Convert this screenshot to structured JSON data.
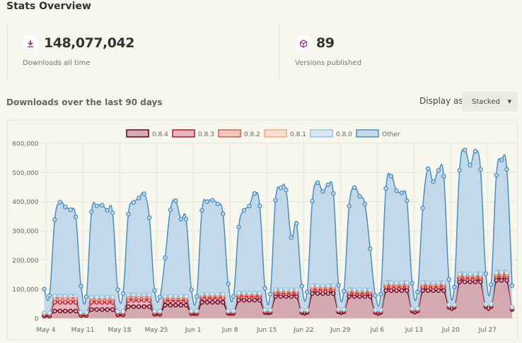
{
  "header": {
    "title": "Stats Overview"
  },
  "stats": [
    {
      "icon": "download-icon",
      "value": "148,077,042",
      "label": "Downloads all time"
    },
    {
      "icon": "box-icon",
      "value": "89",
      "label": "Versions published"
    }
  ],
  "chart_section": {
    "heading": "Downloads over the last 90 days",
    "display_label": "Display as",
    "display_value": "Stacked"
  },
  "chart_data": {
    "type": "area",
    "stacked": true,
    "values_in_thousands": true,
    "ylim": [
      0,
      600
    ],
    "y_ticks": [
      0,
      100,
      200,
      300,
      400,
      500,
      600
    ],
    "y_tick_labels": [
      "0",
      "100,000",
      "200,000",
      "300,000",
      "400,000",
      "500,000",
      "600,000"
    ],
    "x_tick_labels": [
      "May 4",
      "May 11",
      "May 18",
      "May 25",
      "Jun 1",
      "Jun 8",
      "Jun 15",
      "Jun 22",
      "Jun 29",
      "Jul 6",
      "Jul 13",
      "Jul 20",
      "Jul 27"
    ],
    "x_tick_index_step": 7,
    "grid": true,
    "legend_position": "top",
    "series": [
      {
        "name": "0.8.4",
        "stroke": "#67001f",
        "fill": "#d5a9b2",
        "values": [
          8,
          8,
          25,
          25,
          25,
          25,
          25,
          10,
          10,
          30,
          30,
          30,
          30,
          30,
          12,
          12,
          40,
          40,
          40,
          40,
          40,
          14,
          14,
          45,
          45,
          45,
          45,
          45,
          16,
          16,
          55,
          55,
          55,
          55,
          55,
          17,
          17,
          62,
          62,
          62,
          62,
          62,
          20,
          20,
          75,
          75,
          75,
          75,
          75,
          20,
          20,
          85,
          85,
          85,
          85,
          85,
          22,
          22,
          75,
          75,
          75,
          75,
          75,
          20,
          20,
          95,
          95,
          95,
          95,
          95,
          25,
          25,
          95,
          95,
          95,
          95,
          95,
          38,
          38,
          125,
          125,
          125,
          125,
          125,
          40,
          40,
          130,
          130,
          130,
          30
        ]
      },
      {
        "name": "0.8.3",
        "stroke": "#b2182b",
        "fill": "#e8b7bd",
        "values": [
          5,
          5,
          30,
          30,
          30,
          30,
          30,
          5,
          5,
          25,
          25,
          25,
          25,
          25,
          6,
          6,
          22,
          22,
          22,
          22,
          22,
          5,
          5,
          15,
          15,
          15,
          15,
          15,
          4,
          4,
          15,
          15,
          15,
          15,
          15,
          4,
          4,
          12,
          12,
          12,
          12,
          12,
          4,
          4,
          10,
          10,
          10,
          10,
          10,
          4,
          4,
          12,
          12,
          12,
          12,
          12,
          4,
          4,
          10,
          10,
          10,
          10,
          10,
          4,
          4,
          12,
          12,
          12,
          12,
          12,
          4,
          4,
          12,
          12,
          12,
          12,
          12,
          4,
          4,
          12,
          12,
          12,
          12,
          12,
          4,
          4,
          12,
          12,
          12,
          4
        ]
      },
      {
        "name": "0.8.2",
        "stroke": "#d6604d",
        "fill": "#f2c5bb",
        "values": [
          3,
          3,
          12,
          12,
          12,
          12,
          12,
          3,
          3,
          10,
          10,
          10,
          10,
          10,
          3,
          3,
          10,
          10,
          10,
          10,
          10,
          3,
          3,
          8,
          8,
          8,
          8,
          8,
          3,
          3,
          6,
          6,
          6,
          6,
          6,
          2,
          2,
          6,
          6,
          6,
          6,
          6,
          2,
          2,
          6,
          6,
          6,
          6,
          6,
          2,
          2,
          7,
          7,
          7,
          7,
          7,
          2,
          2,
          6,
          6,
          6,
          6,
          6,
          2,
          2,
          7,
          7,
          7,
          7,
          7,
          2,
          2,
          7,
          7,
          7,
          7,
          7,
          2,
          2,
          7,
          7,
          7,
          7,
          7,
          2,
          2,
          7,
          7,
          7,
          2
        ]
      },
      {
        "name": "0.8.1",
        "stroke": "#f4a582",
        "fill": "#fbe0d2",
        "values": [
          2,
          2,
          8,
          8,
          8,
          8,
          8,
          2,
          2,
          6,
          6,
          6,
          6,
          6,
          2,
          2,
          7,
          7,
          7,
          7,
          7,
          2,
          2,
          6,
          6,
          6,
          6,
          6,
          2,
          2,
          5,
          5,
          5,
          5,
          5,
          2,
          2,
          5,
          5,
          5,
          5,
          5,
          2,
          2,
          5,
          5,
          5,
          5,
          5,
          2,
          2,
          6,
          6,
          6,
          6,
          6,
          2,
          2,
          5,
          5,
          5,
          5,
          5,
          2,
          2,
          6,
          6,
          6,
          6,
          6,
          2,
          2,
          6,
          6,
          6,
          6,
          6,
          2,
          2,
          6,
          6,
          6,
          6,
          6,
          2,
          2,
          6,
          6,
          6,
          2
        ]
      },
      {
        "name": "0.8.0",
        "stroke": "#92c5de",
        "fill": "#dbe9f3",
        "values": [
          1,
          1,
          2,
          2,
          2,
          2,
          2,
          1,
          1,
          2,
          2,
          2,
          2,
          2,
          1,
          1,
          2,
          2,
          2,
          2,
          2,
          1,
          1,
          2,
          2,
          2,
          2,
          2,
          1,
          1,
          2,
          2,
          2,
          2,
          2,
          1,
          1,
          2,
          2,
          2,
          2,
          2,
          1,
          1,
          2,
          2,
          2,
          2,
          2,
          1,
          1,
          2,
          2,
          2,
          2,
          2,
          1,
          1,
          2,
          2,
          2,
          2,
          2,
          1,
          1,
          2,
          2,
          2,
          2,
          2,
          1,
          1,
          2,
          2,
          2,
          2,
          2,
          1,
          1,
          2,
          2,
          2,
          2,
          2,
          1,
          1,
          2,
          2,
          2,
          1
        ]
      },
      {
        "name": "Other",
        "stroke": "#4a8fc1",
        "fill": "#c3d9ea",
        "values": [
          81,
          59,
          261,
          321,
          305,
          295,
          271,
          89,
          52,
          292,
          312,
          315,
          297,
          289,
          74,
          61,
          276,
          316,
          331,
          346,
          264,
          70,
          48,
          132,
          296,
          327,
          264,
          264,
          72,
          49,
          287,
          317,
          322,
          309,
          275,
          92,
          49,
          226,
          283,
          298,
          341,
          298,
          74,
          54,
          307,
          349,
          342,
          179,
          227,
          81,
          61,
          290,
          353,
          323,
          346,
          316,
          82,
          62,
          287,
          350,
          320,
          294,
          140,
          49,
          54,
          323,
          365,
          315,
          308,
          281,
          86,
          56,
          256,
          391,
          346,
          385,
          365,
          86,
          60,
          355,
          425,
          373,
          421,
          358,
          104,
          66,
          333,
          386,
          353,
          73
        ]
      }
    ]
  }
}
